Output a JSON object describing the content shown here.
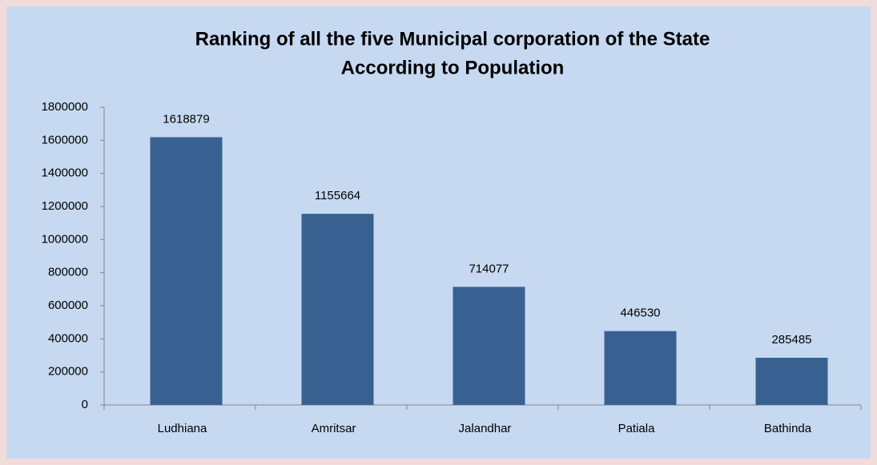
{
  "chart_data": {
    "type": "bar",
    "title": [
      "Ranking of all the five Municipal corporation of the State",
      "According to Population"
    ],
    "categories": [
      "Ludhiana",
      "Amritsar",
      "Jalandhar",
      "Patiala",
      "Bathinda"
    ],
    "values": [
      1618879,
      1155664,
      714077,
      446530,
      285485
    ],
    "color": "#386192",
    "ylim": [
      0,
      1800000
    ],
    "yticks": [
      0,
      200000,
      400000,
      600000,
      800000,
      1000000,
      1200000,
      1400000,
      1600000,
      1800000
    ],
    "grid": false
  }
}
